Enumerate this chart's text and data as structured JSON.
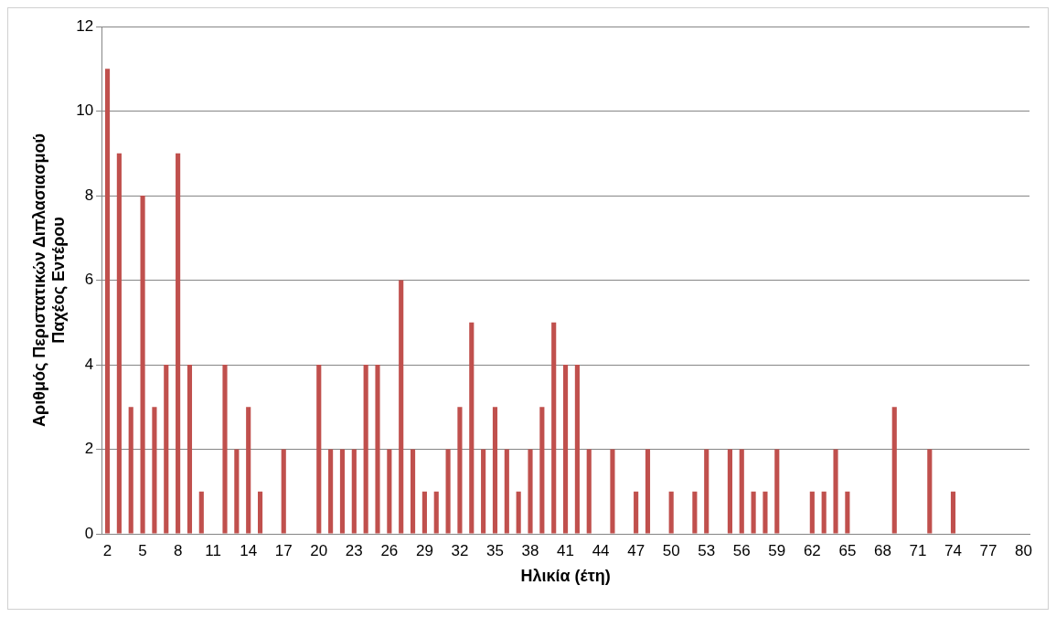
{
  "chart_data": {
    "type": "bar",
    "xlabel": "Ηλικία (έτη)",
    "ylabel": "Αριθμός Περιστατικών Διπλασιασμού\nΠαχέος Εντέρου",
    "categories": [
      "2",
      null,
      null,
      "5",
      null,
      null,
      "8",
      null,
      null,
      "11",
      null,
      null,
      "14",
      null,
      null,
      "17",
      null,
      null,
      "20",
      null,
      null,
      "23",
      null,
      null,
      "26",
      null,
      null,
      "29",
      null,
      null,
      "32",
      null,
      null,
      "35",
      null,
      null,
      "38",
      null,
      null,
      "41",
      null,
      null,
      "44",
      null,
      null,
      "47",
      null,
      null,
      "50",
      null,
      null,
      "53",
      null,
      null,
      "56",
      null,
      null,
      "59",
      null,
      null,
      "62",
      null,
      null,
      "65",
      null,
      null,
      "68",
      null,
      null,
      "71",
      null,
      null,
      "74",
      null,
      null,
      "77",
      null,
      null,
      "80"
    ],
    "values": [
      11,
      9,
      3,
      8,
      3,
      4,
      9,
      4,
      1,
      0,
      4,
      2,
      3,
      1,
      0,
      2,
      0,
      0,
      4,
      2,
      2,
      2,
      4,
      4,
      2,
      6,
      2,
      1,
      1,
      2,
      3,
      5,
      2,
      3,
      2,
      1,
      2,
      3,
      5,
      4,
      4,
      2,
      0,
      2,
      0,
      1,
      2,
      0,
      1,
      0,
      1,
      2,
      0,
      2,
      2,
      1,
      1,
      2,
      0,
      0,
      1,
      1,
      2,
      1,
      0,
      0,
      0,
      3,
      0,
      0,
      2,
      0,
      1,
      0,
      0,
      0,
      0,
      0,
      0
    ],
    "color": "#c0504d",
    "ylim": [
      0,
      12
    ],
    "yticks": [
      0,
      2,
      4,
      6,
      8,
      10,
      12
    ],
    "grid": "y",
    "legend": false
  }
}
